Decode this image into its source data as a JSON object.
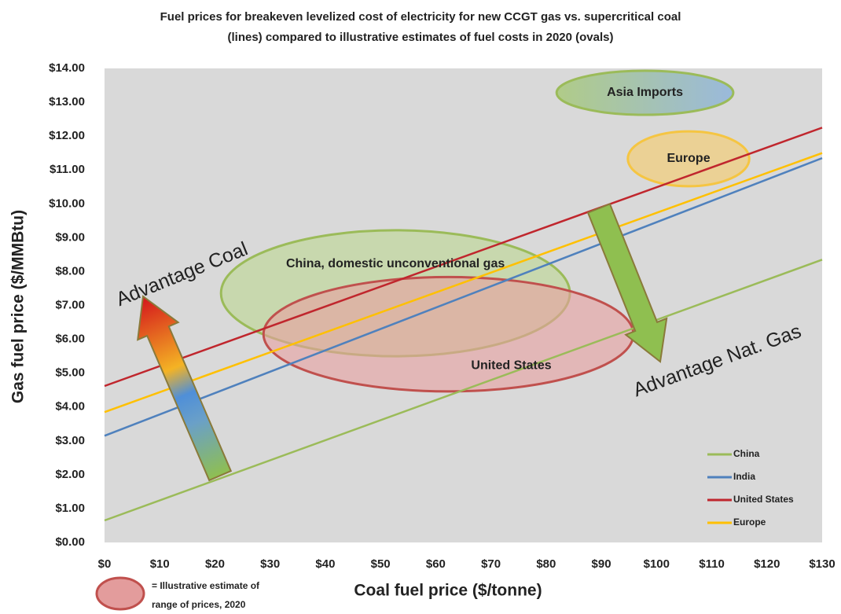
{
  "chart_data": {
    "type": "line",
    "title": [
      "Fuel prices for breakeven levelized cost of electricity for new CCGT gas vs. supercritical coal",
      "(lines) compared to illustrative estimates of fuel costs in 2020 (ovals)"
    ],
    "xlabel": "Coal fuel price ($/tonne)",
    "ylabel": "Gas fuel price ($/MMBtu)",
    "x": [
      0,
      130
    ],
    "series": [
      {
        "name": "China",
        "color": "#9bbb59",
        "values": [
          0.65,
          8.35
        ]
      },
      {
        "name": "India",
        "color": "#4f81bd",
        "values": [
          3.15,
          11.35
        ]
      },
      {
        "name": "United States",
        "color": "#c0262d",
        "values": [
          4.62,
          12.25
        ]
      },
      {
        "name": "Europe",
        "color": "#ffc000",
        "values": [
          3.85,
          11.5
        ]
      }
    ],
    "ovals": [
      {
        "label": "China, domestic unconventional gas",
        "cx": 52.7,
        "cy": 7.36,
        "rx": 31.6,
        "ry": 1.86,
        "color": "#9bbb59"
      },
      {
        "label": "United States",
        "cx": 62.3,
        "cy": 6.15,
        "rx": 33.5,
        "ry": 1.69,
        "color": "#c0504d"
      },
      {
        "label": "Asia Imports",
        "cx": 97.9,
        "cy": 13.28,
        "rx": 16,
        "ry": 0.65,
        "color": "#9bbb59"
      },
      {
        "label": "Europe",
        "cx": 105.8,
        "cy": 11.33,
        "rx": 11,
        "ry": 0.81,
        "color": "#f5c542"
      }
    ],
    "annotations": [
      "Advantage Coal",
      "Advantage Nat. Gas"
    ],
    "note": [
      "= Illustrative estimate of",
      "range of  prices, 2020"
    ],
    "xlim": [
      0,
      130
    ],
    "ylim": [
      0,
      14
    ],
    "xticks": [
      {
        "value": 0,
        "label": "$0"
      },
      {
        "value": 10,
        "label": "$10"
      },
      {
        "value": 20,
        "label": "$20"
      },
      {
        "value": 30,
        "label": "$30"
      },
      {
        "value": 40,
        "label": "$40"
      },
      {
        "value": 50,
        "label": "$50"
      },
      {
        "value": 60,
        "label": "$60"
      },
      {
        "value": 70,
        "label": "$70"
      },
      {
        "value": 80,
        "label": "$80"
      },
      {
        "value": 90,
        "label": "$90"
      },
      {
        "value": 100,
        "label": "$100"
      },
      {
        "value": 110,
        "label": "$110"
      },
      {
        "value": 120,
        "label": "$120"
      },
      {
        "value": 130,
        "label": "$130"
      }
    ],
    "yticks": [
      {
        "value": 0,
        "label": "$0.00"
      },
      {
        "value": 1,
        "label": "$1.00"
      },
      {
        "value": 2,
        "label": "$2.00"
      },
      {
        "value": 3,
        "label": "$3.00"
      },
      {
        "value": 4,
        "label": "$4.00"
      },
      {
        "value": 5,
        "label": "$5.00"
      },
      {
        "value": 6,
        "label": "$6.00"
      },
      {
        "value": 7,
        "label": "$7.00"
      },
      {
        "value": 8,
        "label": "$8.00"
      },
      {
        "value": 9,
        "label": "$9.00"
      },
      {
        "value": 10,
        "label": "$10.00"
      },
      {
        "value": 11,
        "label": "$11.00"
      },
      {
        "value": 12,
        "label": "$12.00"
      },
      {
        "value": 13,
        "label": "$13.00"
      },
      {
        "value": 14,
        "label": "$14.00"
      }
    ],
    "legend": "lower right"
  }
}
